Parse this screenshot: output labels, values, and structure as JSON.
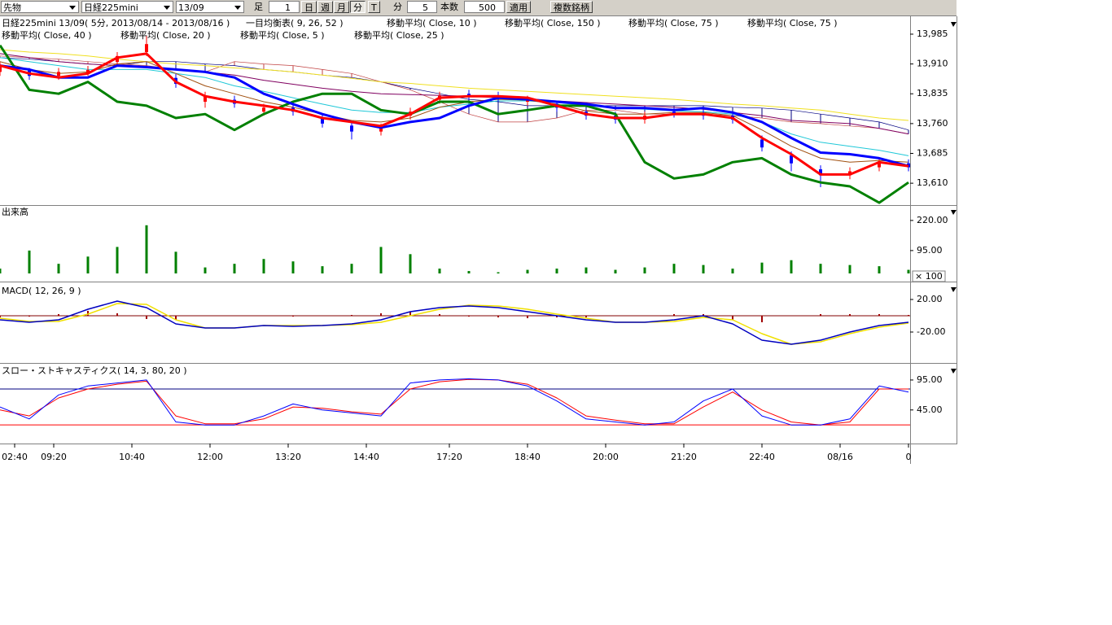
{
  "toolbar": {
    "market": "先物",
    "symbol": "日経225mini",
    "month": "13/09",
    "bar_label": "足",
    "bar_count": 1,
    "period_buttons": [
      "日",
      "週",
      "月",
      "分",
      "T"
    ],
    "unit_label": "分",
    "interval": 5,
    "count_label": "本数",
    "count": 500,
    "apply": "適用",
    "multi": "複数銘柄"
  },
  "chart_data": [
    {
      "type": "candlestick",
      "titles": [
        "日経225mini 13/09( 5分, 2013/08/14 - 2013/08/16 )",
        "一目均衡表( 9, 26, 52 )",
        "移動平均( Close, 10 )",
        "移動平均( Close, 150 )",
        "移動平均( Close, 75 )",
        "移動平均( Close, 75 )",
        "移動平均( Close, 40 )",
        "移動平均( Close, 20 )",
        "移動平均( Close, 5 )",
        "移動平均( Close, 25 )"
      ],
      "x": [
        0,
        6,
        12,
        18,
        24,
        30,
        36,
        42,
        48,
        54,
        60,
        66,
        72,
        78,
        84,
        90,
        96,
        102,
        108,
        114,
        120,
        126,
        132,
        138,
        144,
        150,
        156,
        162,
        168,
        174,
        180,
        186
      ],
      "open": [
        13890,
        13895,
        13880,
        13885,
        13915,
        13940,
        13875,
        13815,
        13820,
        13790,
        13800,
        13775,
        13755,
        13740,
        13780,
        13820,
        13835,
        13830,
        13815,
        13810,
        13790,
        13780,
        13770,
        13790,
        13785,
        13780,
        13720,
        13680,
        13645,
        13630,
        13650,
        13660
      ],
      "high": [
        13915,
        13900,
        13900,
        13905,
        13940,
        13980,
        13885,
        13840,
        13830,
        13810,
        13810,
        13785,
        13765,
        13760,
        13800,
        13840,
        13845,
        13840,
        13830,
        13815,
        13795,
        13790,
        13790,
        13800,
        13795,
        13790,
        13730,
        13690,
        13655,
        13650,
        13670,
        13670
      ],
      "low": [
        13880,
        13870,
        13870,
        13880,
        13905,
        13930,
        13850,
        13800,
        13800,
        13780,
        13780,
        13750,
        13720,
        13730,
        13770,
        13810,
        13820,
        13815,
        13805,
        13790,
        13770,
        13760,
        13760,
        13775,
        13770,
        13760,
        13690,
        13640,
        13600,
        13620,
        13640,
        13640
      ],
      "close": [
        13905,
        13880,
        13890,
        13895,
        13930,
        13960,
        13860,
        13830,
        13810,
        13800,
        13790,
        13760,
        13740,
        13750,
        13790,
        13830,
        13830,
        13825,
        13820,
        13800,
        13780,
        13770,
        13780,
        13785,
        13780,
        13770,
        13700,
        13660,
        13630,
        13640,
        13660,
        13650
      ],
      "up_color": "#ff0000",
      "down_color": "#0000ff",
      "cloud": {
        "color_a": "#000080",
        "color_b": "#c04040",
        "span_a": [
          13926,
          13922,
          13916,
          13910,
          13906,
          13916,
          13916,
          13910,
          13906,
          13896,
          13890,
          13882,
          13876,
          13865,
          13849,
          13835,
          13821,
          13815,
          13805,
          13805,
          13805,
          13805,
          13805,
          13805,
          13805,
          13801,
          13799,
          13794,
          13784,
          13774,
          13764,
          13744
        ],
        "span_b": [
          13930,
          13926,
          13922,
          13916,
          13910,
          13906,
          13896,
          13890,
          13916,
          13910,
          13906,
          13896,
          13886,
          13865,
          13845,
          13815,
          13784,
          13764,
          13764,
          13774,
          13794,
          13794,
          13784,
          13784,
          13784,
          13780,
          13774,
          13764,
          13760,
          13754,
          13748,
          13734
        ]
      },
      "series": [
        {
          "color": "#f0e020",
          "line_width": 1,
          "values": [
            13946,
            13940,
            13936,
            13930,
            13922,
            13916,
            13910,
            13906,
            13900,
            13896,
            13890,
            13882,
            13874,
            13865,
            13861,
            13855,
            13849,
            13845,
            13841,
            13837,
            13833,
            13829,
            13825,
            13821,
            13815,
            13809,
            13805,
            13799,
            13794,
            13784,
            13774,
            13768
          ]
        },
        {
          "color": "#800060",
          "line_width": 1,
          "values": [
            13936,
            13926,
            13916,
            13910,
            13906,
            13902,
            13896,
            13890,
            13882,
            13869,
            13859,
            13849,
            13841,
            13835,
            13833,
            13831,
            13829,
            13825,
            13821,
            13817,
            13813,
            13809,
            13805,
            13801,
            13796,
            13788,
            13780,
            13768,
            13764,
            13760,
            13748,
            13734
          ]
        },
        {
          "color": "#20c8d8",
          "line_width": 1,
          "values": [
            13926,
            13916,
            13906,
            13896,
            13896,
            13896,
            13886,
            13876,
            13855,
            13841,
            13825,
            13809,
            13794,
            13788,
            13788,
            13801,
            13809,
            13817,
            13817,
            13813,
            13805,
            13799,
            13796,
            13792,
            13790,
            13784,
            13764,
            13734,
            13713,
            13703,
            13693,
            13679
          ]
        },
        {
          "color": "#a05010",
          "line_width": 1,
          "values": [
            13916,
            13896,
            13886,
            13890,
            13910,
            13916,
            13886,
            13855,
            13835,
            13815,
            13801,
            13784,
            13768,
            13764,
            13774,
            13801,
            13815,
            13821,
            13819,
            13809,
            13792,
            13784,
            13784,
            13788,
            13788,
            13780,
            13744,
            13703,
            13673,
            13663,
            13667,
            13663
          ]
        },
        {
          "color": "#008000",
          "line_width": 3,
          "values": [
            13957,
            13845,
            13835,
            13865,
            13815,
            13805,
            13774,
            13784,
            13744,
            13784,
            13815,
            13835,
            13835,
            13794,
            13784,
            13815,
            13815,
            13784,
            13794,
            13805,
            13805,
            13784,
            13663,
            13622,
            13632,
            13663,
            13673,
            13632,
            13612,
            13602,
            13561,
            13612
          ]
        },
        {
          "color": "#0000ff",
          "line_width": 3,
          "values": [
            13906,
            13896,
            13876,
            13876,
            13906,
            13902,
            13896,
            13890,
            13876,
            13835,
            13809,
            13784,
            13764,
            13750,
            13764,
            13774,
            13805,
            13825,
            13821,
            13815,
            13809,
            13799,
            13799,
            13794,
            13799,
            13788,
            13764,
            13724,
            13687,
            13683,
            13673,
            13653
          ]
        },
        {
          "color": "#ff0000",
          "line_width": 3,
          "values": [
            13906,
            13886,
            13876,
            13886,
            13926,
            13936,
            13865,
            13829,
            13815,
            13805,
            13794,
            13774,
            13764,
            13754,
            13784,
            13825,
            13829,
            13829,
            13825,
            13805,
            13784,
            13774,
            13774,
            13784,
            13784,
            13774,
            13724,
            13683,
            13632,
            13632,
            13663,
            13653
          ]
        }
      ],
      "ylim": [
        13555,
        14030
      ],
      "yticks": [
        {
          "value": 13985,
          "label": "13,985"
        },
        {
          "value": 13910,
          "label": "13,910"
        },
        {
          "value": 13835,
          "label": "13,835"
        },
        {
          "value": 13760,
          "label": "13,760"
        },
        {
          "value": 13685,
          "label": "13,685"
        },
        {
          "value": 13610,
          "label": "13,610"
        }
      ]
    },
    {
      "type": "bar",
      "titles": [
        "出来高"
      ],
      "unit": "× 100",
      "color": "#008000",
      "x": [
        0,
        6,
        12,
        18,
        24,
        30,
        36,
        42,
        48,
        54,
        60,
        66,
        72,
        78,
        84,
        90,
        96,
        102,
        108,
        114,
        120,
        126,
        132,
        138,
        144,
        150,
        156,
        162,
        168,
        174,
        180,
        186
      ],
      "values": [
        20,
        95,
        40,
        70,
        110,
        200,
        90,
        25,
        40,
        60,
        50,
        30,
        40,
        110,
        80,
        20,
        10,
        5,
        15,
        20,
        25,
        15,
        25,
        40,
        35,
        20,
        45,
        55,
        40,
        35,
        30,
        15
      ],
      "ylim": [
        0,
        277
      ],
      "yticks": [
        {
          "value": 220,
          "label": "220.00"
        },
        {
          "value": 95,
          "label": "95.00"
        }
      ]
    },
    {
      "type": "macd",
      "titles": [
        "MACD( 12, 26, 9 )"
      ],
      "zero_color": "#800000",
      "hist_color": "#a00000",
      "x": [
        0,
        6,
        12,
        18,
        24,
        30,
        36,
        42,
        48,
        54,
        60,
        66,
        72,
        78,
        84,
        90,
        96,
        102,
        108,
        114,
        120,
        126,
        132,
        138,
        144,
        150,
        156,
        162,
        168,
        174,
        180,
        186
      ],
      "histogram": [
        -2,
        -1,
        2,
        6,
        3,
        -4,
        -5,
        0,
        0,
        0,
        -1,
        0,
        1,
        3,
        5,
        2,
        -1,
        -2,
        -3,
        -2,
        -2,
        0,
        0,
        2,
        2,
        -5,
        -8,
        0,
        2,
        2,
        2,
        1
      ],
      "series": [
        {
          "color": "#f0e000",
          "line_width": 1.5,
          "values": [
            -3,
            -7,
            -7,
            2,
            15,
            14,
            -5,
            -15,
            -15,
            -12,
            -12,
            -12,
            -11,
            -8,
            0,
            8,
            13,
            12,
            8,
            2,
            -3,
            -8,
            -8,
            -7,
            -2,
            -5,
            -22,
            -35,
            -32,
            -22,
            -14,
            -9
          ]
        },
        {
          "color": "#0000c0",
          "line_width": 1.5,
          "values": [
            -5,
            -8,
            -5,
            8,
            18,
            10,
            -10,
            -15,
            -15,
            -12,
            -13,
            -12,
            -10,
            -5,
            5,
            10,
            12,
            10,
            5,
            0,
            -5,
            -8,
            -8,
            -5,
            0,
            -10,
            -30,
            -35,
            -30,
            -20,
            -12,
            -8
          ]
        }
      ],
      "ylim": [
        -57,
        38
      ],
      "yticks": [
        {
          "value": 20,
          "label": "20.00"
        },
        {
          "value": -20,
          "label": "-20.00"
        }
      ]
    },
    {
      "type": "line",
      "titles": [
        "スロー・ストキャスティクス( 14, 3, 80, 20 )"
      ],
      "x": [
        0,
        6,
        12,
        18,
        24,
        30,
        36,
        42,
        48,
        54,
        60,
        66,
        72,
        78,
        84,
        90,
        96,
        102,
        108,
        114,
        120,
        126,
        132,
        138,
        144,
        150,
        156,
        162,
        168,
        174,
        180,
        186
      ],
      "levels": [
        {
          "value": 80,
          "color": "#000080"
        },
        {
          "value": 20,
          "color": "#ff0000"
        }
      ],
      "series": [
        {
          "color": "#ff0000",
          "line_width": 1,
          "values": [
            45,
            35,
            65,
            80,
            88,
            93,
            35,
            22,
            22,
            30,
            50,
            48,
            42,
            38,
            80,
            92,
            96,
            95,
            88,
            65,
            35,
            28,
            22,
            22,
            50,
            75,
            45,
            25,
            20,
            25,
            80,
            80
          ]
        },
        {
          "color": "#0000ff",
          "line_width": 1,
          "values": [
            50,
            30,
            70,
            85,
            90,
            95,
            25,
            20,
            20,
            35,
            55,
            45,
            40,
            35,
            90,
            95,
            97,
            95,
            85,
            60,
            30,
            25,
            20,
            25,
            60,
            80,
            35,
            20,
            20,
            30,
            85,
            75
          ]
        }
      ],
      "ylim": [
        -11,
        118
      ],
      "yticks": [
        {
          "value": 95,
          "label": "95.00"
        },
        {
          "value": 45,
          "label": "45.00"
        }
      ],
      "xlim": [
        0,
        186
      ],
      "xticks": [
        {
          "value": 3,
          "label": "02:40"
        },
        {
          "value": 11,
          "label": "09:20"
        },
        {
          "value": 27,
          "label": "10:40"
        },
        {
          "value": 43,
          "label": "12:00"
        },
        {
          "value": 59,
          "label": "13:20"
        },
        {
          "value": 75,
          "label": "14:40"
        },
        {
          "value": 92,
          "label": "17:20"
        },
        {
          "value": 108,
          "label": "18:40"
        },
        {
          "value": 124,
          "label": "20:00"
        },
        {
          "value": 140,
          "label": "21:20"
        },
        {
          "value": 156,
          "label": "22:40"
        },
        {
          "value": 172,
          "label": "08/16"
        },
        {
          "value": 186,
          "label": "0"
        }
      ]
    }
  ]
}
